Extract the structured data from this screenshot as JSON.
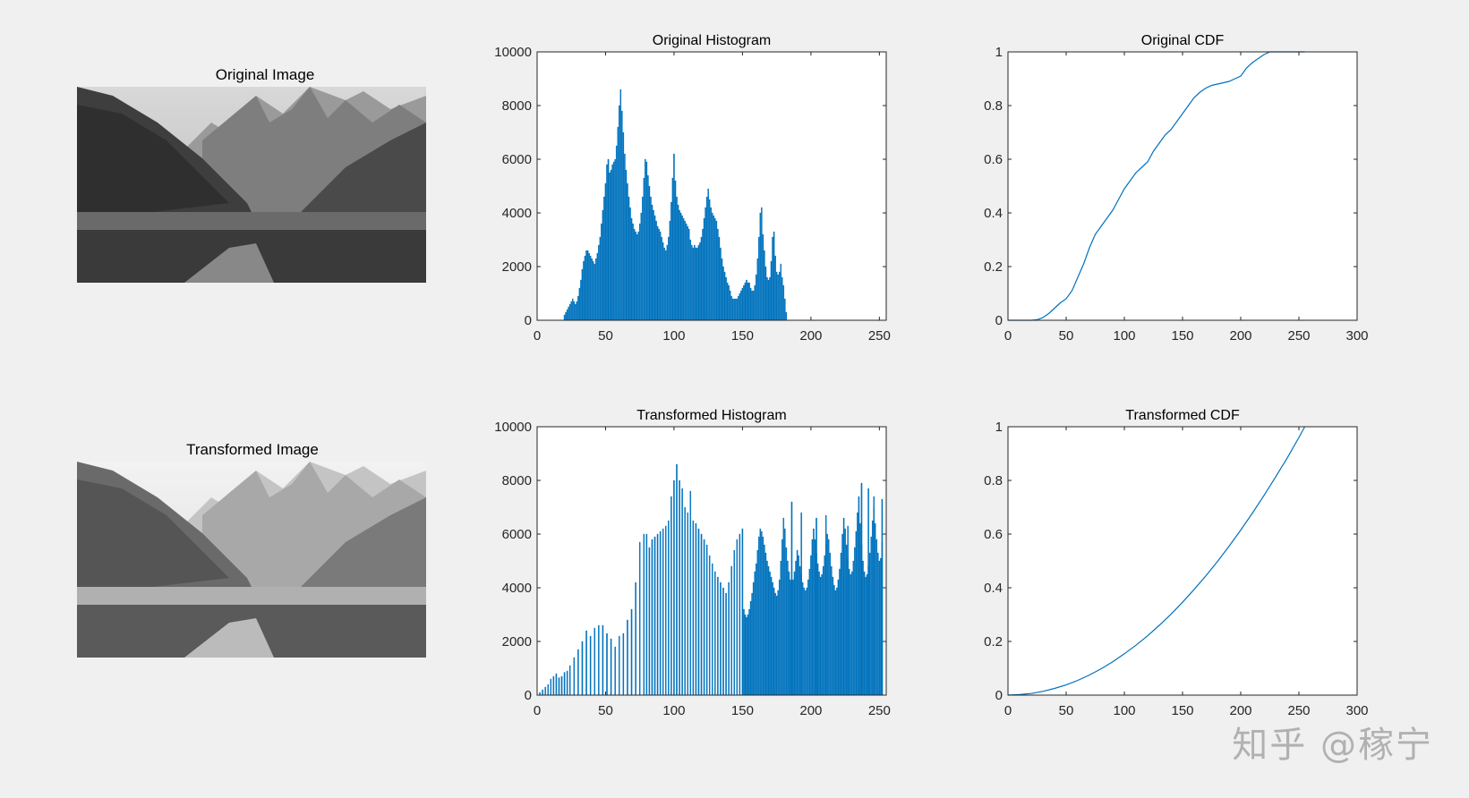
{
  "images": [
    {
      "title": "Original Image",
      "variant": "original"
    },
    {
      "title": "Transformed Image",
      "variant": "transformed"
    }
  ],
  "watermark": "知乎 @稼宁",
  "colors": {
    "series": "#0072bd",
    "axes_bg": "#ffffff",
    "figure_bg": "#f0f0f0"
  },
  "chart_data": [
    {
      "id": "orig_hist",
      "type": "bar",
      "title": "Original Histogram",
      "xlabel": "",
      "ylabel": "",
      "xlim": [
        0,
        255
      ],
      "ylim": [
        0,
        10000
      ],
      "xticks": [
        0,
        50,
        100,
        150,
        200,
        250
      ],
      "yticks": [
        0,
        2000,
        4000,
        6000,
        8000,
        10000
      ],
      "grid": false,
      "x_start": 20,
      "values": [
        200,
        300,
        400,
        500,
        600,
        700,
        800,
        700,
        600,
        700,
        900,
        1200,
        1500,
        1900,
        2200,
        2400,
        2600,
        2600,
        2500,
        2400,
        2300,
        2200,
        2100,
        2300,
        2500,
        2800,
        3100,
        3600,
        4100,
        4600,
        5100,
        5800,
        6000,
        5500,
        5600,
        5800,
        5900,
        6000,
        6500,
        7200,
        8000,
        8600,
        7800,
        7000,
        6200,
        5600,
        5100,
        4600,
        4200,
        3800,
        3600,
        3400,
        3300,
        3200,
        3300,
        3600,
        4000,
        4600,
        5300,
        6000,
        5900,
        5400,
        5000,
        4600,
        4300,
        4100,
        3900,
        3700,
        3500,
        3400,
        3300,
        3100,
        2900,
        2700,
        2600,
        2800,
        3100,
        3700,
        4400,
        5300,
        6200,
        5200,
        4600,
        4300,
        4100,
        4000,
        3900,
        3800,
        3700,
        3600,
        3500,
        3400,
        3000,
        2800,
        2700,
        2800,
        2700,
        2700,
        2800,
        2900,
        3100,
        3400,
        3800,
        4200,
        4600,
        4900,
        4500,
        4200,
        4000,
        3900,
        3800,
        3700,
        3400,
        3100,
        2700,
        2300,
        2000,
        1800,
        1600,
        1400,
        1300,
        1100,
        900,
        800,
        800,
        800,
        800,
        900,
        1000,
        1100,
        1200,
        1300,
        1400,
        1500,
        1400,
        1400,
        1200,
        1100,
        1100,
        1300,
        1700,
        2300,
        3100,
        4000,
        4200,
        3200,
        2600,
        2000,
        1600,
        1500,
        1600,
        2200,
        3100,
        3300,
        2400,
        1800,
        1700,
        1800,
        2100,
        1600,
        1300,
        800,
        300
      ],
      "series": [
        {
          "name": "",
          "color": "#0072bd"
        }
      ]
    },
    {
      "id": "orig_cdf",
      "type": "line",
      "title": "Original CDF",
      "xlabel": "",
      "ylabel": "",
      "xlim": [
        0,
        300
      ],
      "ylim": [
        0,
        1
      ],
      "xticks": [
        0,
        50,
        100,
        150,
        200,
        250,
        300
      ],
      "yticks": [
        0,
        0.2,
        0.4,
        0.6,
        0.8,
        1
      ],
      "grid": false,
      "x": [
        0,
        20,
        25,
        30,
        35,
        40,
        45,
        50,
        55,
        60,
        65,
        70,
        75,
        80,
        85,
        90,
        95,
        100,
        105,
        110,
        115,
        120,
        125,
        130,
        135,
        140,
        145,
        150,
        155,
        160,
        165,
        170,
        175,
        180,
        185,
        190,
        195,
        200,
        205,
        210,
        215,
        220,
        225,
        230,
        235,
        240,
        255
      ],
      "y": [
        0,
        0,
        0.002,
        0.01,
        0.025,
        0.045,
        0.065,
        0.08,
        0.11,
        0.16,
        0.21,
        0.27,
        0.32,
        0.35,
        0.38,
        0.41,
        0.45,
        0.49,
        0.52,
        0.55,
        0.57,
        0.59,
        0.63,
        0.66,
        0.69,
        0.71,
        0.74,
        0.77,
        0.8,
        0.83,
        0.85,
        0.865,
        0.875,
        0.88,
        0.885,
        0.89,
        0.9,
        0.91,
        0.94,
        0.96,
        0.975,
        0.99,
        1,
        1,
        1,
        1,
        1
      ],
      "series": [
        {
          "name": "",
          "color": "#0072bd"
        }
      ]
    },
    {
      "id": "trans_hist",
      "type": "bar",
      "title": "Transformed Histogram",
      "xlabel": "",
      "ylabel": "",
      "xlim": [
        0,
        255
      ],
      "ylim": [
        0,
        10000
      ],
      "xticks": [
        0,
        50,
        100,
        150,
        200,
        250
      ],
      "yticks": [
        0,
        2000,
        4000,
        6000,
        8000,
        10000
      ],
      "grid": false,
      "sparse_x": [
        2,
        4,
        6,
        8,
        10,
        12,
        14,
        16,
        18,
        20,
        22,
        24,
        27,
        30,
        33,
        36,
        39,
        42,
        45,
        48,
        51,
        54,
        57,
        60,
        63,
        66,
        69,
        72,
        75,
        78,
        80,
        82,
        84,
        86,
        88,
        90,
        92,
        94,
        96,
        98,
        100,
        102,
        104,
        106,
        108,
        110,
        112,
        114,
        116,
        118,
        120,
        122,
        124,
        126,
        128,
        130,
        132,
        134,
        136,
        138,
        140,
        142,
        144,
        146,
        148,
        150
      ],
      "sparse_values": [
        100,
        200,
        300,
        400,
        600,
        700,
        800,
        650,
        700,
        850,
        900,
        1100,
        1400,
        1700,
        2000,
        2400,
        2200,
        2500,
        2600,
        2600,
        2300,
        2100,
        1800,
        2200,
        2300,
        2800,
        3200,
        4200,
        5700,
        6000,
        6000,
        5500,
        5800,
        5900,
        6000,
        6100,
        6200,
        6300,
        6500,
        7400,
        8000,
        8600,
        8000,
        7700,
        7000,
        6800,
        7600,
        6500,
        6400,
        6200,
        6000,
        5800,
        5600,
        5200,
        4900,
        4600,
        4400,
        4200,
        4000,
        3800,
        4200,
        4800,
        5400,
        5800,
        6000,
        6200
      ],
      "dense_x_start": 151,
      "dense_values": [
        3200,
        3000,
        2900,
        3000,
        3200,
        3500,
        3800,
        4200,
        4600,
        4900,
        5400,
        5900,
        6200,
        6100,
        5900,
        5600,
        5300,
        5000,
        4800,
        4600,
        4400,
        4200,
        4000,
        3800,
        3700,
        3900,
        4300,
        5000,
        5800,
        6600,
        6200,
        5500,
        5000,
        4600,
        4300,
        4200,
        4300,
        4600,
        5000,
        5400,
        5200,
        4800,
        4500,
        4200,
        4000,
        3900,
        4000,
        4300,
        4700,
        5200,
        5800,
        6200,
        5800,
        5300,
        4900,
        4600,
        4400,
        4500,
        4800,
        5200,
        5600,
        6000,
        5800,
        5300,
        4800,
        4400,
        4100,
        3900,
        4000,
        4300,
        4700,
        5300,
        6000,
        6600,
        6200,
        5600,
        5100,
        4700,
        4500,
        4600,
        5000,
        5500,
        6100,
        6800,
        7400,
        6400,
        5600,
        5000,
        4600,
        4400,
        4500,
        4800,
        5300,
        5900,
        6500,
        7000,
        6400,
        5800,
        5300,
        5000,
        5100,
        5700
      ],
      "spikes": [
        {
          "x": 186,
          "v": 7200
        },
        {
          "x": 193,
          "v": 6800
        },
        {
          "x": 204,
          "v": 6600
        },
        {
          "x": 211,
          "v": 6700
        },
        {
          "x": 227,
          "v": 6300
        },
        {
          "x": 237,
          "v": 7900
        },
        {
          "x": 242,
          "v": 7700
        },
        {
          "x": 246,
          "v": 7400
        },
        {
          "x": 252,
          "v": 7300
        }
      ],
      "series": [
        {
          "name": "",
          "color": "#0072bd"
        }
      ]
    },
    {
      "id": "trans_cdf",
      "type": "line",
      "title": "Transformed CDF",
      "xlabel": "",
      "ylabel": "",
      "xlim": [
        0,
        300
      ],
      "ylim": [
        0,
        1
      ],
      "xticks": [
        0,
        50,
        100,
        150,
        200,
        250,
        300
      ],
      "yticks": [
        0,
        0.2,
        0.4,
        0.6,
        0.8,
        1
      ],
      "grid": false,
      "x": [
        0,
        10,
        20,
        30,
        40,
        50,
        60,
        70,
        80,
        90,
        100,
        110,
        120,
        130,
        140,
        150,
        160,
        170,
        180,
        190,
        200,
        210,
        220,
        230,
        240,
        250,
        255
      ],
      "y": [
        0,
        0.002,
        0.006,
        0.014,
        0.025,
        0.038,
        0.055,
        0.075,
        0.098,
        0.124,
        0.154,
        0.186,
        0.221,
        0.26,
        0.301,
        0.346,
        0.394,
        0.444,
        0.498,
        0.555,
        0.615,
        0.678,
        0.744,
        0.813,
        0.884,
        0.96,
        1
      ],
      "series": [
        {
          "name": "",
          "color": "#0072bd"
        }
      ]
    }
  ]
}
